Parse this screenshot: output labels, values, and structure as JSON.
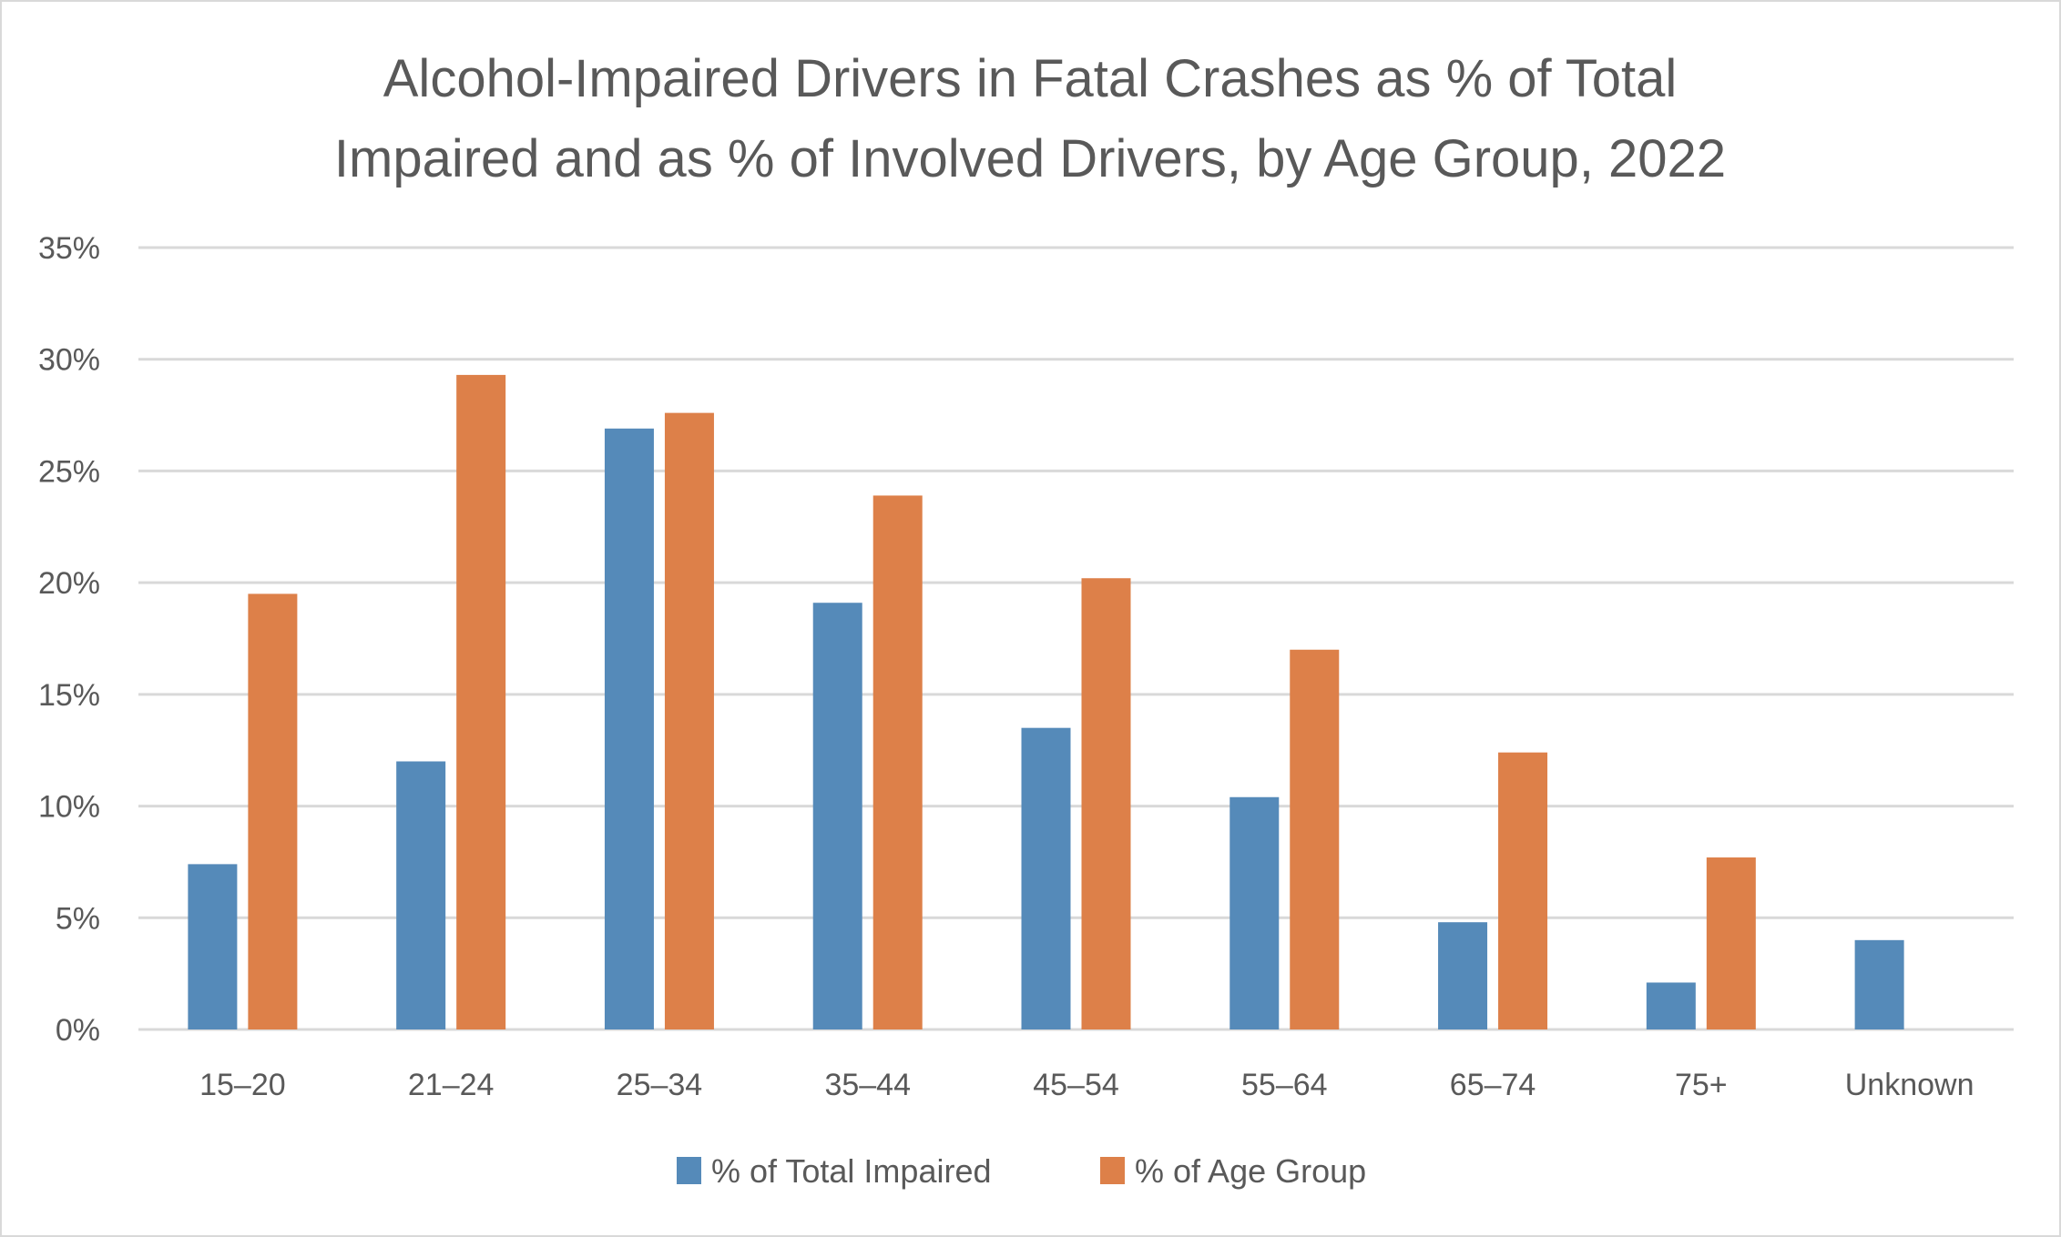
{
  "chart_data": {
    "type": "bar",
    "title": "Alcohol-Impaired Drivers in Fatal Crashes as % of Total Impaired and as % of Involved Drivers, by Age Group, 2022",
    "title_lines": [
      "Alcohol-Impaired Drivers in Fatal Crashes as % of Total",
      "Impaired and as % of Involved Drivers, by Age Group, 2022"
    ],
    "xlabel": "",
    "ylabel": "",
    "categories": [
      "15–20",
      "21–24",
      "25–34",
      "35–44",
      "45–54",
      "55–64",
      "65–74",
      "75+",
      "Unknown"
    ],
    "series": [
      {
        "name": "% of Total Impaired",
        "color": "#558ab9",
        "values": [
          7.4,
          12.0,
          26.9,
          19.1,
          13.5,
          10.4,
          4.8,
          2.1,
          4.0
        ]
      },
      {
        "name": "% of Age Group",
        "color": "#dd8049",
        "values": [
          19.5,
          29.3,
          27.6,
          23.9,
          20.2,
          17.0,
          12.4,
          7.7,
          null
        ]
      }
    ],
    "ylim": [
      0,
      35
    ],
    "yticks": [
      0,
      5,
      10,
      15,
      20,
      25,
      30,
      35
    ],
    "ytick_labels": [
      "0%",
      "5%",
      "10%",
      "15%",
      "20%",
      "25%",
      "30%",
      "35%"
    ],
    "grid": true,
    "legend_position": "bottom-center"
  },
  "colors": {
    "text": "#595959",
    "gridline": "#d9d9d9",
    "frame": "#d9d9d9"
  }
}
